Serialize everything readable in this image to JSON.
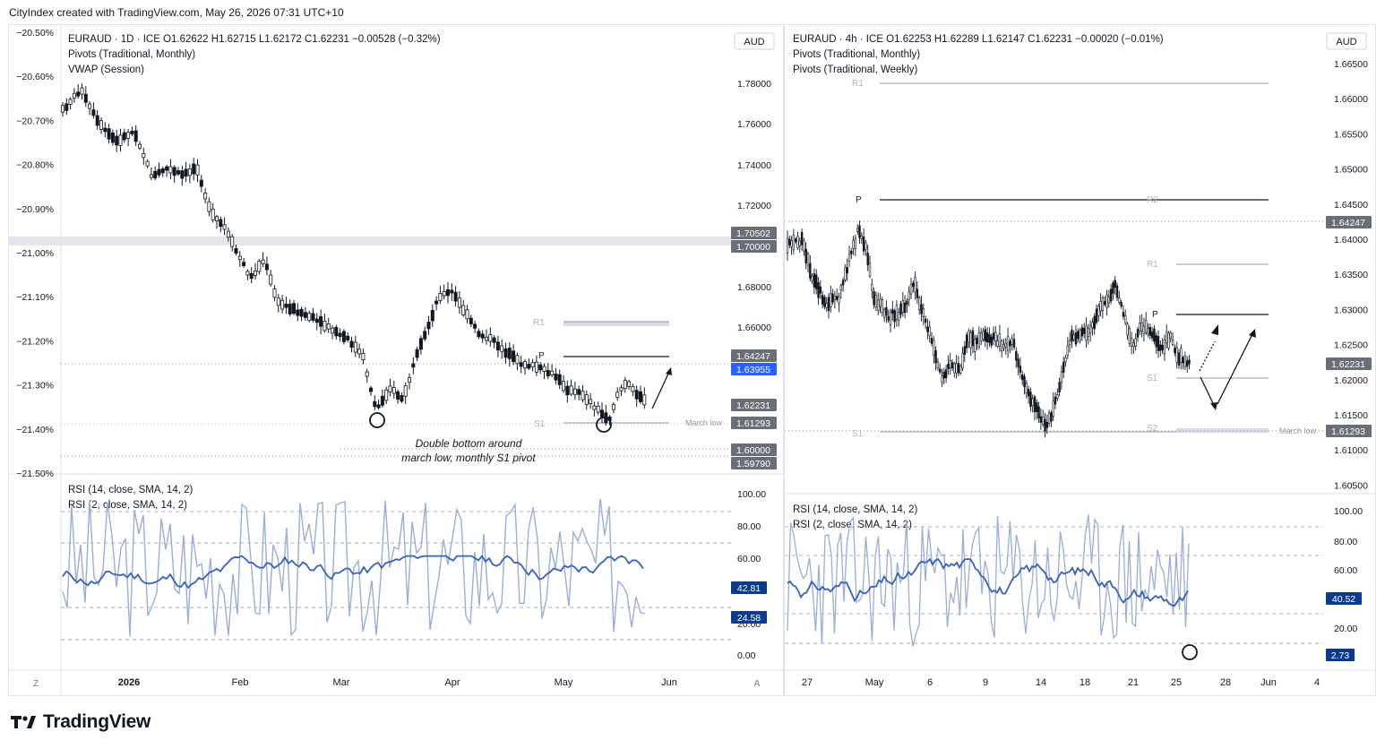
{
  "header": {
    "text": "CityIndex created with TradingView.com, May 26, 2026 07:31 UTC+10"
  },
  "brand": {
    "name": "TradingView"
  },
  "colors": {
    "candle": "#131722",
    "rsi14": "#3a61b8",
    "rsi2": "#9aaed6",
    "grey": "#9598a1",
    "badge_dark": "#6b6e76",
    "badge_blue": "#2962ff",
    "badge_navy": "#0b3b8f"
  },
  "chart_data": [
    {
      "type": "candlestick",
      "info": {
        "line1": "EURAUD · 1D · ICE   O1.62622  H1.62715  L1.62172  C1.62231  −0.00528 (−0.32%)",
        "line2": "Pivots (Traditional, Monthly)",
        "line3": "VWAP (Session)"
      },
      "currency": "AUD",
      "left_axis": [
        "−20.50%",
        "−20.60%",
        "−20.70%",
        "−20.80%",
        "−20.90%",
        "−21.00%",
        "−21.10%",
        "−21.20%",
        "−21.30%",
        "−21.40%",
        "−21.50%"
      ],
      "right_axis": [
        "1.78000",
        "1.76000",
        "1.74000",
        "1.72000",
        "1.68000",
        "1.66000"
      ],
      "x_labels": [
        "2026",
        "Feb",
        "Mar",
        "Apr",
        "May",
        "Jun"
      ],
      "price_badges": [
        {
          "value": "1.70502"
        },
        {
          "value": "1.70000"
        },
        {
          "value": "1.64247"
        },
        {
          "value": "1.63955"
        },
        {
          "value": "1.62231"
        },
        {
          "value": "1.61293"
        },
        {
          "value": "1.60000"
        },
        {
          "value": "1.59790"
        }
      ],
      "pivot_labels": [
        "R1",
        "P",
        "S1"
      ],
      "march_low_label": "March low",
      "annotation": [
        "Double bottom around",
        "march low, monthly S1 pivot"
      ],
      "corner_labels": [
        "Z",
        "A"
      ],
      "rsi": {
        "label1": "RSI (14, close, SMA, 14, 2)",
        "label2": "RSI (2, close, SMA, 14, 2)",
        "axis": [
          "100.00",
          "80.00",
          "60.00",
          "20.00",
          "0.00"
        ],
        "badges": [
          "42.81",
          "24.58"
        ]
      }
    },
    {
      "type": "candlestick",
      "info": {
        "line1": "EURAUD · 4h · ICE   O1.62253  H1.62289  L1.62147  C1.62231  −0.00020 (−0.01%)",
        "line2": "Pivots (Traditional, Monthly)",
        "line3": "Pivots (Traditional, Weekly)"
      },
      "currency": "AUD",
      "right_axis": [
        "1.66500",
        "1.66000",
        "1.65500",
        "1.65000",
        "1.64500",
        "1.64000",
        "1.63500",
        "1.63000",
        "1.62500",
        "1.62000",
        "1.61500",
        "1.61000",
        "1.60500"
      ],
      "x_labels": [
        "27",
        "May",
        "6",
        "9",
        "14",
        "18",
        "21",
        "25",
        "28",
        "Jun",
        "4"
      ],
      "price_badges": [
        {
          "value": "1.64247"
        },
        {
          "value": "1.62231"
        },
        {
          "value": "1.61293"
        }
      ],
      "pivot_labels": [
        "R1",
        "P",
        "R2",
        "R1",
        "P",
        "S1",
        "S2",
        "S1"
      ],
      "march_low_label": "March low",
      "rsi": {
        "label1": "RSI (14, close, SMA, 14, 2)",
        "label2": "RSI (2, close, SMA, 14, 2)",
        "axis": [
          "100.00",
          "80.00",
          "60.00",
          "20.00"
        ],
        "badges": [
          "40.52",
          "2.73"
        ]
      }
    }
  ]
}
